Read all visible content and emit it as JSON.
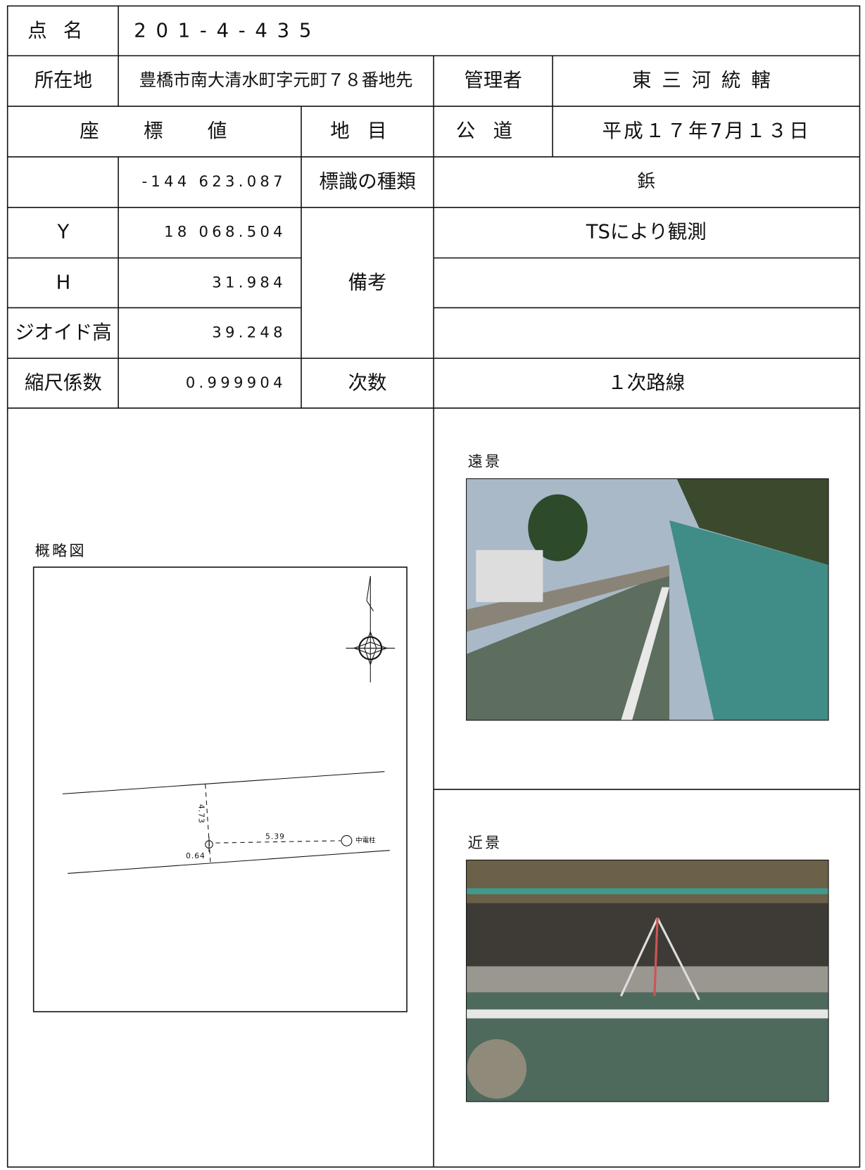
{
  "record": {
    "point_name": {
      "label": "点名",
      "value": "201-4-435"
    },
    "location": {
      "label": "所在地",
      "value": "豊橋市南大清水町字元町７８番地先"
    },
    "manager": {
      "label": "管理者",
      "value": "東三河統轄"
    },
    "coordinates": {
      "label": "座標値",
      "x": "-144 623.087",
      "y_label": "Y",
      "y": "18 068.504",
      "h_label": "H",
      "h": "31.984",
      "geoid_label": "ジオイド高",
      "geoid": "39.248",
      "scale_label": "縮尺係数",
      "scale": "0.999904"
    },
    "land_category": {
      "label": "地目",
      "value": "公道"
    },
    "survey_date": "平成１７年7月１３日",
    "marker_type": {
      "label": "標識の種類",
      "value": "鋲"
    },
    "remarks": {
      "label": "備考",
      "lines": [
        "TSにより観測"
      ]
    },
    "order": {
      "label": "次数",
      "value": "１次路線"
    }
  },
  "sketch": {
    "title": "概略図",
    "labels": [
      "4.73",
      "5.39",
      "0.64",
      "中電柱"
    ]
  },
  "photos": [
    {
      "title": "遠景"
    },
    {
      "title": "近景"
    }
  ]
}
